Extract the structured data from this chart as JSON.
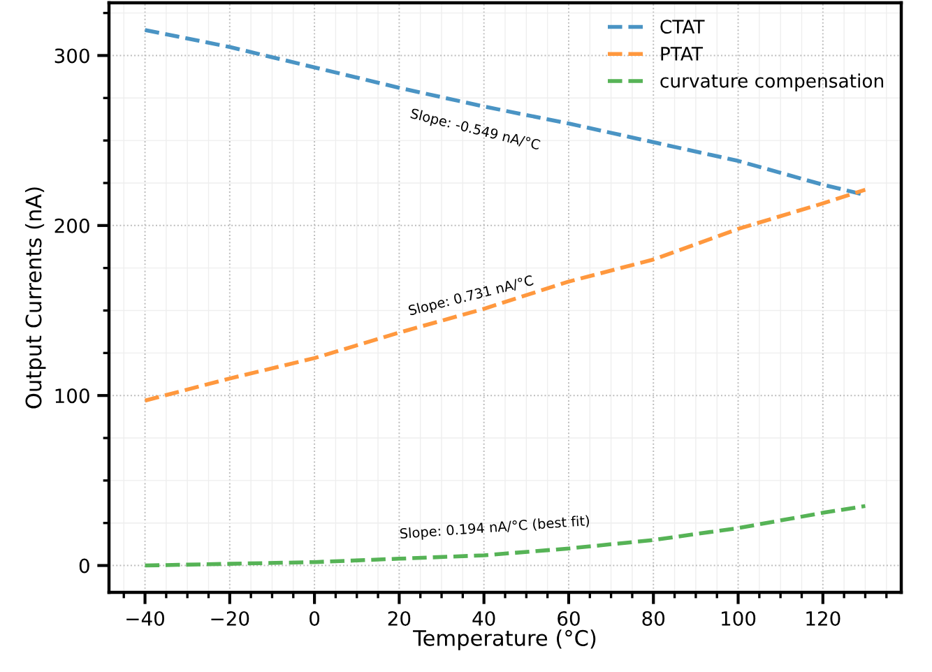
{
  "chart_data": {
    "type": "line",
    "xlabel": "Temperature (°C)",
    "ylabel": "Output Currents (nA)",
    "x": [
      -40,
      -20,
      0,
      20,
      40,
      60,
      80,
      100,
      120,
      130
    ],
    "series": [
      {
        "name": "CTAT",
        "color": "#4a94c4",
        "values": [
          315,
          305,
          293,
          281,
          270,
          260,
          249,
          238,
          224,
          218
        ]
      },
      {
        "name": "PTAT",
        "color": "#ff983e",
        "values": [
          97,
          110,
          122,
          137,
          151,
          167,
          180,
          198,
          213,
          221
        ]
      },
      {
        "name": "curvature compensation",
        "color": "#56b356",
        "values": [
          0,
          1,
          2,
          4,
          6,
          10,
          15,
          22,
          31,
          35
        ]
      }
    ],
    "annotations": [
      "Slope: -0.549 nA/°C",
      "Slope: 0.731 nA/°C",
      "Slope: 0.194 nA/°C (best fit)"
    ],
    "xlim": [
      -48.5,
      138.5
    ],
    "ylim": [
      -15.8,
      331
    ],
    "xticks": [
      {
        "value": -40,
        "label": "−40"
      },
      {
        "value": -20,
        "label": "−20"
      },
      0,
      20,
      40,
      60,
      80,
      100,
      120
    ],
    "yticks": [
      0,
      100,
      200,
      300
    ],
    "grid": true,
    "legend": "top right",
    "line_style": "dashed",
    "marker": "none"
  }
}
